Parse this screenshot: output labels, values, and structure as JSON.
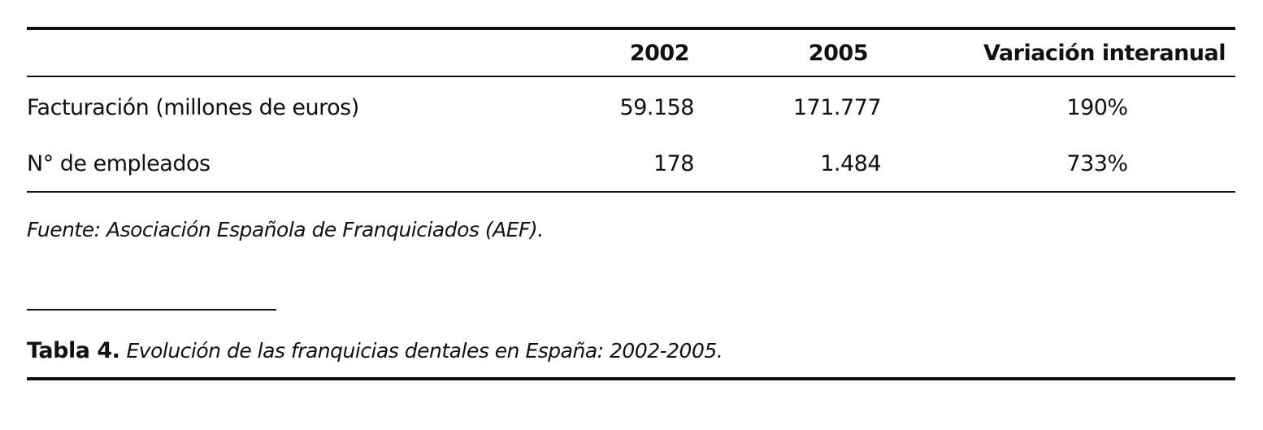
{
  "table": {
    "header": [
      "2002",
      "2005",
      "Variación interanual"
    ],
    "rows": [
      [
        "Facturación (millones de euros)",
        "59.158",
        "171.777",
        "190%"
      ],
      [
        "N° de empleados",
        "178",
        "1.484",
        "733%"
      ]
    ],
    "source": "Fuente: Asociación Española de Franquiciados (AEF)."
  },
  "caption": {
    "label": "Tabla 4.",
    "text": "Evolución de las franquicias dentales en España: 2002-2005."
  }
}
